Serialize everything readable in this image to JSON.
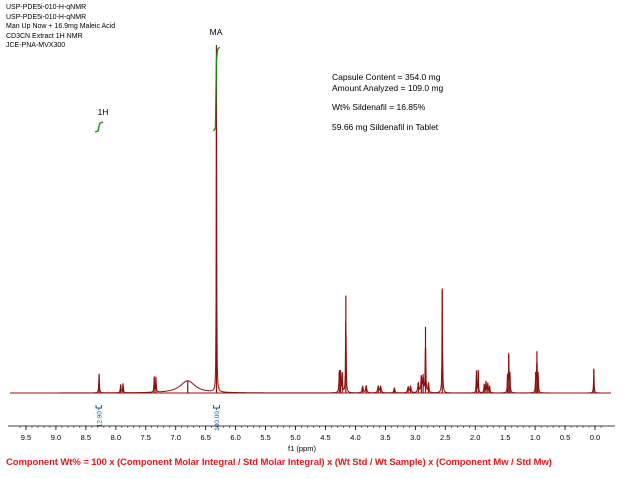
{
  "header_lines": [
    "USP-PDE5i-010-H-qNMR",
    "USP-PDE5i-010-H-qNMR",
    "Man Up Now + 16.9mg Maleic Acid",
    "CD3CN Extract 1H NMR",
    "JCE-PNA-MVX300"
  ],
  "info": {
    "capsule": "Capsule Content = 354.0 mg",
    "amount": "Amount Analyzed = 109.0 mg",
    "wt": "Wt% Sildenafil = 16.85%",
    "mg": "59.66 mg Sildenafil in Tablet"
  },
  "formula": "Component Wt%  = 100 x (Component Molar Integral / Std Molar Integral) x (Wt Std / Wt Sample) x (Component Mw / Std Mw)",
  "colors": {
    "spectrum": "#8b1010",
    "integral_curve": "#1a8a1a",
    "integral_bracket": "#1a5a9a",
    "formula": "#e01b1b"
  },
  "chart_data": {
    "type": "line",
    "title": "",
    "xlabel": "f1 (ppm)",
    "ylabel": "",
    "xlim": [
      9.7,
      -0.2
    ],
    "x_reversed": true,
    "ylim": [
      0,
      1
    ],
    "x_ticks": [
      "9.5",
      "9.0",
      "8.5",
      "8.0",
      "7.5",
      "7.0",
      "6.5",
      "6.0",
      "5.5",
      "5.0",
      "4.5",
      "4.0",
      "3.5",
      "3.0",
      "2.5",
      "2.0",
      "1.5",
      "1.0",
      "0.5",
      "0.0"
    ],
    "peak_labels": [
      "MA",
      "1H"
    ],
    "integral_labels": [
      "12.90",
      "100.00"
    ],
    "series": [
      {
        "peaks": [
          {
            "ppm": 8.28,
            "h": 0.055,
            "w": 0.006
          },
          {
            "ppm": 7.92,
            "h": 0.025,
            "w": 0.006
          },
          {
            "ppm": 7.88,
            "h": 0.028,
            "w": 0.006
          },
          {
            "ppm": 7.36,
            "h": 0.045,
            "w": 0.005
          },
          {
            "ppm": 7.33,
            "h": 0.045,
            "w": 0.005
          },
          {
            "ppm": 6.8,
            "h": 0.035,
            "w": 0.15
          },
          {
            "ppm": 6.32,
            "h": 1.0,
            "w": 0.004
          },
          {
            "ppm": 4.27,
            "h": 0.06,
            "w": 0.006
          },
          {
            "ppm": 4.25,
            "h": 0.065,
            "w": 0.006
          },
          {
            "ppm": 4.22,
            "h": 0.055,
            "w": 0.006
          },
          {
            "ppm": 4.16,
            "h": 0.28,
            "w": 0.005
          },
          {
            "ppm": 3.88,
            "h": 0.02,
            "w": 0.01
          },
          {
            "ppm": 3.82,
            "h": 0.022,
            "w": 0.01
          },
          {
            "ppm": 3.62,
            "h": 0.02,
            "w": 0.01
          },
          {
            "ppm": 3.58,
            "h": 0.02,
            "w": 0.01
          },
          {
            "ppm": 3.35,
            "h": 0.015,
            "w": 0.01
          },
          {
            "ppm": 3.12,
            "h": 0.018,
            "w": 0.01
          },
          {
            "ppm": 3.08,
            "h": 0.02,
            "w": 0.01
          },
          {
            "ppm": 2.95,
            "h": 0.03,
            "w": 0.01
          },
          {
            "ppm": 2.9,
            "h": 0.05,
            "w": 0.008
          },
          {
            "ppm": 2.87,
            "h": 0.048,
            "w": 0.008
          },
          {
            "ppm": 2.83,
            "h": 0.19,
            "w": 0.005
          },
          {
            "ppm": 2.78,
            "h": 0.03,
            "w": 0.008
          },
          {
            "ppm": 2.55,
            "h": 0.3,
            "w": 0.005
          },
          {
            "ppm": 1.98,
            "h": 0.065,
            "w": 0.005
          },
          {
            "ppm": 1.95,
            "h": 0.065,
            "w": 0.005
          },
          {
            "ppm": 1.85,
            "h": 0.025,
            "w": 0.006
          },
          {
            "ppm": 1.82,
            "h": 0.035,
            "w": 0.006
          },
          {
            "ppm": 1.79,
            "h": 0.03,
            "w": 0.006
          },
          {
            "ppm": 1.76,
            "h": 0.02,
            "w": 0.006
          },
          {
            "ppm": 1.46,
            "h": 0.055,
            "w": 0.005
          },
          {
            "ppm": 1.44,
            "h": 0.11,
            "w": 0.005
          },
          {
            "ppm": 1.42,
            "h": 0.055,
            "w": 0.005
          },
          {
            "ppm": 0.99,
            "h": 0.06,
            "w": 0.005
          },
          {
            "ppm": 0.97,
            "h": 0.12,
            "w": 0.005
          },
          {
            "ppm": 0.95,
            "h": 0.06,
            "w": 0.005
          },
          {
            "ppm": 0.02,
            "h": 0.07,
            "w": 0.005
          }
        ]
      }
    ],
    "integrals": [
      {
        "label": "12.90",
        "from": 8.33,
        "to": 8.24
      },
      {
        "label": "100.00",
        "from": 6.37,
        "to": 6.27
      }
    ],
    "grid": false,
    "legend": "none"
  }
}
